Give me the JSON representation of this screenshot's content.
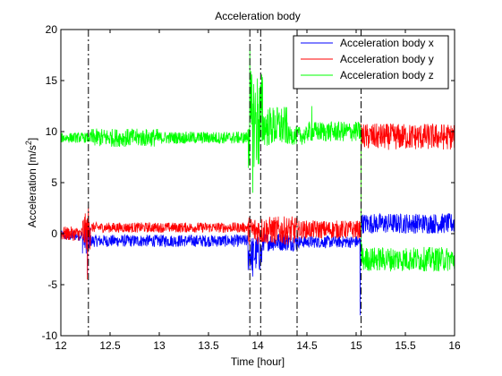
{
  "chart_data": {
    "type": "line",
    "title": "Acceleration body",
    "xlabel": "Time [hour]",
    "ylabel_main": "Acceleration [m/s",
    "ylabel_sup": "2",
    "ylabel_end": "]",
    "xlim": [
      12,
      16
    ],
    "ylim": [
      -10,
      20
    ],
    "xticks": [
      12,
      12.5,
      13,
      13.5,
      14,
      14.5,
      15,
      15.5,
      16
    ],
    "xtick_labels": [
      "12",
      "12.5",
      "13",
      "13.5",
      "14",
      "14.5",
      "15",
      "15.5",
      "16"
    ],
    "yticks": [
      -10,
      -5,
      0,
      5,
      10,
      15,
      20
    ],
    "ytick_labels": [
      "-10",
      "-5",
      "0",
      "5",
      "10",
      "15",
      "20"
    ],
    "grid": false,
    "legend_position": "top-right",
    "vertical_markers": [
      12.28,
      13.92,
      14.03,
      14.4,
      15.05
    ],
    "series": [
      {
        "name": "Acceleration body x",
        "color": "#0000ff",
        "segments": [
          {
            "x0": 12.0,
            "x1": 12.22,
            "mean": -0.2,
            "amp": 0.5
          },
          {
            "x0": 12.22,
            "x1": 12.3,
            "mean": -0.5,
            "amp": 1.5
          },
          {
            "x0": 12.3,
            "x1": 13.9,
            "mean": -0.7,
            "amp": 0.6
          },
          {
            "x0": 13.9,
            "x1": 14.05,
            "mean": -2.0,
            "amp": 1.8
          },
          {
            "x0": 14.05,
            "x1": 14.4,
            "mean": -0.8,
            "amp": 0.9
          },
          {
            "x0": 14.4,
            "x1": 15.05,
            "mean": -0.8,
            "amp": 0.6
          },
          {
            "x0": 15.05,
            "x1": 16.0,
            "mean": 1.0,
            "amp": 1.0
          }
        ],
        "spikes": [
          {
            "x": 15.04,
            "y": -8.0
          },
          {
            "x": 12.27,
            "y": -4.0
          },
          {
            "x": 13.95,
            "y": -4.2
          }
        ]
      },
      {
        "name": "Acceleration body y",
        "color": "#ff0000",
        "segments": [
          {
            "x0": 12.0,
            "x1": 12.22,
            "mean": 0.0,
            "amp": 0.7
          },
          {
            "x0": 12.22,
            "x1": 12.3,
            "mean": 0.2,
            "amp": 1.8
          },
          {
            "x0": 12.3,
            "x1": 13.9,
            "mean": 0.6,
            "amp": 0.5
          },
          {
            "x0": 13.9,
            "x1": 14.4,
            "mean": 0.3,
            "amp": 1.4
          },
          {
            "x0": 14.4,
            "x1": 15.05,
            "mean": 0.4,
            "amp": 0.9
          },
          {
            "x0": 15.05,
            "x1": 16.0,
            "mean": 9.5,
            "amp": 1.3
          }
        ],
        "spikes": [
          {
            "x": 12.27,
            "y": -4.5
          },
          {
            "x": 12.28,
            "y": 2.6
          }
        ]
      },
      {
        "name": "Acceleration body z",
        "color": "#00ff00",
        "segments": [
          {
            "x0": 12.0,
            "x1": 12.3,
            "mean": 9.4,
            "amp": 0.5
          },
          {
            "x0": 12.3,
            "x1": 13.0,
            "mean": 9.4,
            "amp": 0.9
          },
          {
            "x0": 13.0,
            "x1": 13.9,
            "mean": 9.4,
            "amp": 0.6
          },
          {
            "x0": 13.9,
            "x1": 14.05,
            "mean": 11.0,
            "amp": 5.0
          },
          {
            "x0": 14.05,
            "x1": 14.3,
            "mean": 10.5,
            "amp": 2.0
          },
          {
            "x0": 14.3,
            "x1": 14.5,
            "mean": 9.6,
            "amp": 0.9
          },
          {
            "x0": 14.5,
            "x1": 15.05,
            "mean": 10.0,
            "amp": 1.0
          },
          {
            "x0": 15.05,
            "x1": 16.0,
            "mean": -2.5,
            "amp": 1.2
          }
        ],
        "spikes": [
          {
            "x": 13.92,
            "y": 18.0
          },
          {
            "x": 13.95,
            "y": 4.0
          },
          {
            "x": 14.55,
            "y": 12.5
          },
          {
            "x": 15.06,
            "y": -1.0
          }
        ]
      }
    ]
  }
}
